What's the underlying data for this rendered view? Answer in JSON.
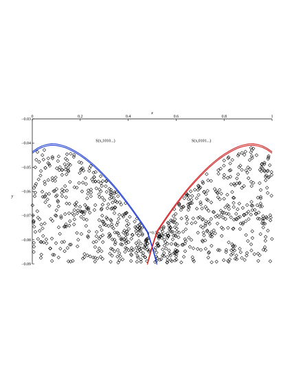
{
  "chart_data": {
    "type": "scatter",
    "xlabel": "x",
    "ylabel": "y",
    "xlim": [
      0,
      1
    ],
    "ylim": [
      -0.09,
      -0.03
    ],
    "x_ticks": [
      {
        "value": 0,
        "label": "0"
      },
      {
        "value": 0.2,
        "label": "0.2"
      },
      {
        "value": 0.4,
        "label": "0.4"
      },
      {
        "value": 0.6,
        "label": "0.6"
      },
      {
        "value": 0.8,
        "label": "0.8"
      },
      {
        "value": 1,
        "label": "1"
      }
    ],
    "y_ticks": [
      {
        "value": -0.03,
        "label": "−0.03"
      },
      {
        "value": -0.04,
        "label": "−0.04"
      },
      {
        "value": -0.05,
        "label": "−0.05"
      },
      {
        "value": -0.06,
        "label": "−0.06"
      },
      {
        "value": -0.07,
        "label": "−0.07"
      },
      {
        "value": -0.08,
        "label": "−0.08"
      },
      {
        "value": -0.09,
        "label": "−0.09"
      }
    ],
    "x_axis_position": "top",
    "grid": false,
    "marker": "diamond-open",
    "marker_color": "#000000",
    "annotations": [
      {
        "text": "S(x,1010...)",
        "x": 0.305,
        "y": -0.0395
      },
      {
        "text": "S(x,0101...)",
        "x": 0.705,
        "y": -0.0395
      },
      {
        "text": "u=0.5",
        "x": 0.5,
        "y": -0.0777
      }
    ],
    "curves": [
      {
        "color": "#1f3fd6",
        "x": [
          0.0,
          0.02,
          0.04,
          0.06,
          0.08,
          0.1,
          0.12,
          0.14,
          0.16,
          0.18,
          0.2,
          0.22,
          0.24,
          0.26,
          0.28,
          0.3,
          0.32,
          0.34,
          0.36,
          0.38,
          0.4,
          0.42,
          0.44,
          0.46,
          0.48,
          0.5,
          0.52
        ],
        "y": [
          -0.0436,
          -0.0422,
          -0.0412,
          -0.0406,
          -0.0403,
          -0.0404,
          -0.0408,
          -0.0414,
          -0.0423,
          -0.0434,
          -0.0446,
          -0.046,
          -0.0476,
          -0.0493,
          -0.0512,
          -0.0532,
          -0.0553,
          -0.0575,
          -0.0599,
          -0.0624,
          -0.065,
          -0.0677,
          -0.0705,
          -0.0734,
          -0.0764,
          -0.0826,
          -0.0897
        ]
      },
      {
        "color": "#1f3fd6",
        "x": [
          0.0,
          0.02,
          0.04,
          0.06,
          0.08,
          0.1,
          0.12,
          0.14,
          0.16,
          0.18,
          0.2,
          0.22,
          0.24,
          0.26,
          0.28,
          0.3,
          0.32,
          0.34,
          0.36,
          0.38,
          0.4,
          0.42,
          0.44,
          0.46,
          0.48,
          0.5,
          0.52
        ],
        "y": [
          -0.0442,
          -0.0428,
          -0.0418,
          -0.0412,
          -0.0409,
          -0.041,
          -0.0414,
          -0.042,
          -0.0429,
          -0.044,
          -0.0452,
          -0.0466,
          -0.0482,
          -0.0499,
          -0.0518,
          -0.0538,
          -0.0559,
          -0.0581,
          -0.0605,
          -0.063,
          -0.0656,
          -0.0683,
          -0.0711,
          -0.074,
          -0.077,
          -0.0832,
          -0.0903
        ]
      },
      {
        "color": "#d42020",
        "x": [
          0.48,
          0.5,
          0.52,
          0.54,
          0.56,
          0.58,
          0.6,
          0.62,
          0.64,
          0.66,
          0.68,
          0.7,
          0.72,
          0.74,
          0.76,
          0.78,
          0.8,
          0.82,
          0.84,
          0.86,
          0.88,
          0.9,
          0.92,
          0.94,
          0.96,
          0.98,
          1.0
        ],
        "y": [
          -0.0897,
          -0.0826,
          -0.0764,
          -0.0734,
          -0.0705,
          -0.0677,
          -0.065,
          -0.0624,
          -0.0599,
          -0.0575,
          -0.0553,
          -0.0532,
          -0.0512,
          -0.0493,
          -0.0476,
          -0.046,
          -0.0446,
          -0.0434,
          -0.0423,
          -0.0414,
          -0.0408,
          -0.0404,
          -0.0403,
          -0.0406,
          -0.0412,
          -0.0422,
          -0.0436
        ]
      },
      {
        "color": "#d42020",
        "x": [
          0.48,
          0.5,
          0.52,
          0.54,
          0.56,
          0.58,
          0.6,
          0.62,
          0.64,
          0.66,
          0.68,
          0.7,
          0.72,
          0.74,
          0.76,
          0.78,
          0.8,
          0.82,
          0.84,
          0.86,
          0.88,
          0.9,
          0.92,
          0.94,
          0.96,
          0.98,
          1.0
        ],
        "y": [
          -0.0903,
          -0.0832,
          -0.077,
          -0.074,
          -0.0711,
          -0.0683,
          -0.0656,
          -0.063,
          -0.0605,
          -0.0581,
          -0.0559,
          -0.0538,
          -0.0518,
          -0.0499,
          -0.0482,
          -0.0466,
          -0.0452,
          -0.044,
          -0.0429,
          -0.042,
          -0.0414,
          -0.041,
          -0.0409,
          -0.0412,
          -0.0418,
          -0.0428,
          -0.0442
        ]
      }
    ],
    "point_clouds": [
      {
        "count": 420,
        "x_range": [
          0.0,
          0.49
        ],
        "y_min": -0.0895,
        "top_boundary_curve": 0
      },
      {
        "count": 420,
        "x_range": [
          0.51,
          1.0
        ],
        "y_min": -0.0895,
        "top_boundary_curve": 2
      }
    ]
  }
}
